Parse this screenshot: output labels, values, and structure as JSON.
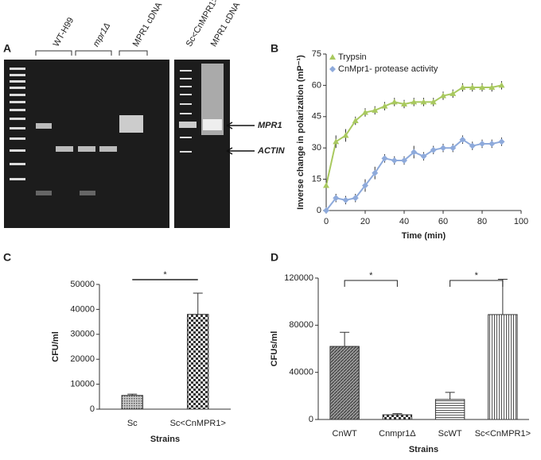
{
  "panel_labels": [
    "A",
    "B",
    "C",
    "D"
  ],
  "gel": {
    "lane_labels": [
      "WT-H99",
      "mpr1Δ",
      "MPR1 cDNA",
      "Sc<CnMPR1>",
      "MPR1 cDNA"
    ],
    "band_labels": [
      "MPR1",
      "ACTIN"
    ]
  },
  "chart_data": [
    {
      "type": "line",
      "xlabel": "Time (min)",
      "ylabel": "Inverse change in polarization (mP⁻¹)",
      "xlim": [
        0,
        100
      ],
      "xticks": [
        0,
        20,
        40,
        60,
        80,
        100
      ],
      "ylim": [
        0,
        75
      ],
      "yticks": [
        0,
        15,
        30,
        45,
        60,
        75
      ],
      "legend": "top-left",
      "x": [
        0,
        5,
        10,
        15,
        20,
        25,
        30,
        35,
        40,
        45,
        50,
        55,
        60,
        65,
        70,
        75,
        80,
        85,
        90
      ],
      "series": [
        {
          "name": "Trypsin",
          "color": "#a9c95f",
          "marker": "triangle",
          "values": [
            12,
            33,
            36,
            43,
            47,
            48,
            50,
            52,
            51,
            52,
            52,
            52,
            55,
            56,
            59,
            59,
            59,
            59,
            60
          ],
          "errors": [
            3,
            3,
            3,
            2,
            2,
            2,
            2,
            2,
            2,
            2,
            2,
            2,
            2,
            2,
            2,
            2,
            2,
            2,
            2
          ]
        },
        {
          "name": "CnMpr1- protease activity",
          "color": "#8eaadb",
          "marker": "diamond",
          "values": [
            0,
            6,
            5,
            6,
            12,
            18,
            25,
            24,
            24,
            28,
            26,
            29,
            30,
            30,
            34,
            31,
            32,
            32,
            33
          ],
          "errors": [
            1,
            2,
            2,
            2,
            3,
            3,
            2,
            2,
            2,
            3,
            2,
            2,
            2,
            2,
            2,
            2,
            2,
            2,
            2
          ]
        }
      ]
    },
    {
      "type": "bar",
      "xlabel": "Strains",
      "ylabel": "CFU/ml",
      "categories": [
        "Sc",
        "Sc<CnMPR1>"
      ],
      "values": [
        5500,
        38000
      ],
      "errors": [
        500,
        8500
      ],
      "patterns": [
        "dots",
        "checker"
      ],
      "ylim": [
        0,
        50000
      ],
      "yticks": [
        0,
        10000,
        20000,
        30000,
        40000,
        50000
      ],
      "annotations": [
        "*"
      ]
    },
    {
      "type": "bar",
      "xlabel": "Strains",
      "ylabel": "CFUs/ml",
      "categories": [
        "CnWT",
        "Cnmpr1Δ",
        "ScWT",
        "Sc<CnMPR1>"
      ],
      "values": [
        62000,
        4000,
        17000,
        89000
      ],
      "errors": [
        12000,
        1000,
        6000,
        30000
      ],
      "patterns": [
        "hatch",
        "checker",
        "horizontal",
        "vertical"
      ],
      "ylim": [
        0,
        120000
      ],
      "yticks": [
        0,
        40000,
        80000,
        120000
      ],
      "annotations": [
        "*",
        "*"
      ]
    }
  ]
}
